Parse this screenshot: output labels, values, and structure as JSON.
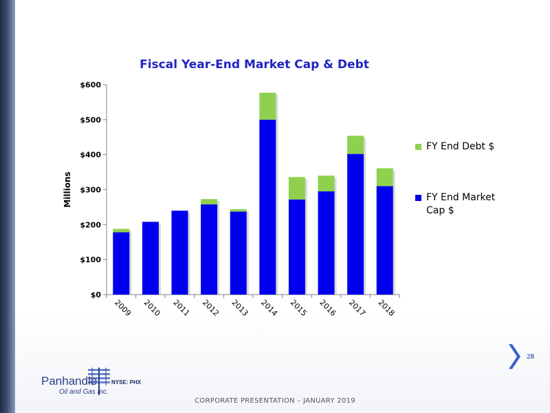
{
  "slide": {
    "page_number": "28",
    "footer": "CORPORATE PRESENTATION – JANUARY 2019",
    "ticker": "NYSE: PHX",
    "logo_word": "Panhandle",
    "logo_sub": "Oil and Gas Inc."
  },
  "chart_data": {
    "type": "bar",
    "stacked": true,
    "title": "Fiscal Year-End Market Cap & Debt",
    "xlabel": "",
    "ylabel": "Millions",
    "ylim": [
      0,
      600
    ],
    "yticks": [
      0,
      100,
      200,
      300,
      400,
      500,
      600
    ],
    "ytick_labels": [
      "$0",
      "$100",
      "$200",
      "$300",
      "$400",
      "$500",
      "$600"
    ],
    "categories": [
      "2009",
      "2010",
      "2011",
      "2012",
      "2013",
      "2014",
      "2015",
      "2016",
      "2017",
      "2018"
    ],
    "series": [
      {
        "name": "FY End Market Cap $",
        "color": "#0000ee",
        "values": [
          178,
          208,
          240,
          258,
          237,
          500,
          272,
          295,
          402,
          310
        ]
      },
      {
        "name": "FY End Debt $",
        "color": "#8fd14f",
        "values": [
          10,
          0,
          0,
          15,
          7,
          77,
          64,
          45,
          52,
          51
        ]
      }
    ],
    "legend_position": "right",
    "grid": false
  }
}
